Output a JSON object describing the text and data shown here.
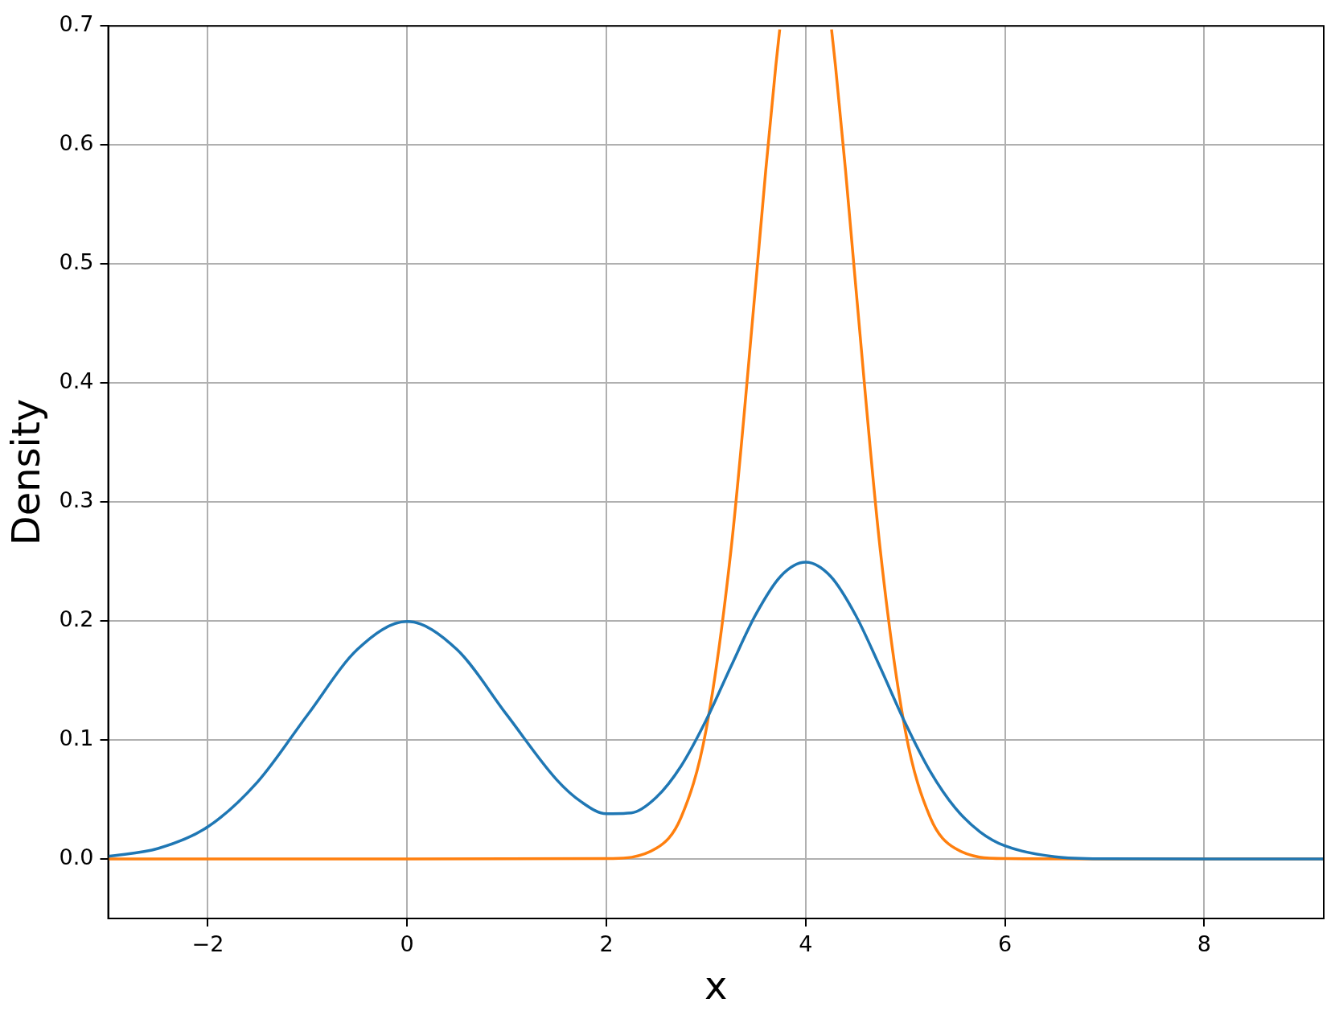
{
  "chart_data": {
    "type": "line",
    "xlabel": "x",
    "ylabel": "Density",
    "xlim": [
      -3,
      9.2
    ],
    "ylim": [
      -0.05,
      0.7
    ],
    "xticks": [
      {
        "value": -2,
        "label": "−2"
      },
      0,
      2,
      4,
      6,
      8
    ],
    "yticks": [
      {
        "value": 0,
        "label": "0.0"
      },
      0.1,
      0.2,
      0.3,
      0.4,
      0.5,
      0.6,
      0.7
    ],
    "grid": true,
    "legend": false,
    "marker": "none",
    "line_style": "solid",
    "series": [
      {
        "color": "#1f77b4",
        "x": [
          -3,
          -2.5,
          -2,
          -1.5,
          -1,
          -0.5,
          0,
          0.5,
          1,
          1.5,
          1.75,
          2,
          2.25,
          2.5,
          2.75,
          3,
          3.25,
          3.5,
          3.75,
          4,
          4.25,
          4.5,
          4.75,
          5,
          5.25,
          5.5,
          5.75,
          6,
          6.5,
          7,
          8,
          9.2
        ],
        "values": [
          0.0022,
          0.0088,
          0.027,
          0.0648,
          0.121,
          0.176,
          0.1995,
          0.176,
          0.1212,
          0.0667,
          0.0479,
          0.038,
          0.0387,
          0.0517,
          0.0781,
          0.1164,
          0.1617,
          0.2055,
          0.2376,
          0.2493,
          0.2375,
          0.2051,
          0.1607,
          0.1142,
          0.0736,
          0.043,
          0.0228,
          0.011,
          0.0019,
          0.0002,
          0,
          0
        ]
      },
      {
        "color": "#ff7f0e",
        "x": [
          -3,
          0,
          2,
          2.5,
          2.75,
          3,
          3.25,
          3.5,
          3.6,
          3.7,
          3.74,
          4,
          4.26,
          4.3,
          4.4,
          4.5,
          4.75,
          5,
          5.25,
          5.5,
          6,
          7,
          9.2
        ],
        "values": [
          0,
          0,
          0.0003,
          0.0089,
          0.035,
          0.108,
          0.259,
          0.484,
          0.579,
          0.666,
          0.697,
          null,
          0.697,
          0.666,
          0.579,
          0.484,
          0.259,
          0.108,
          0.035,
          0.0089,
          0.0003,
          0,
          0
        ]
      }
    ]
  }
}
